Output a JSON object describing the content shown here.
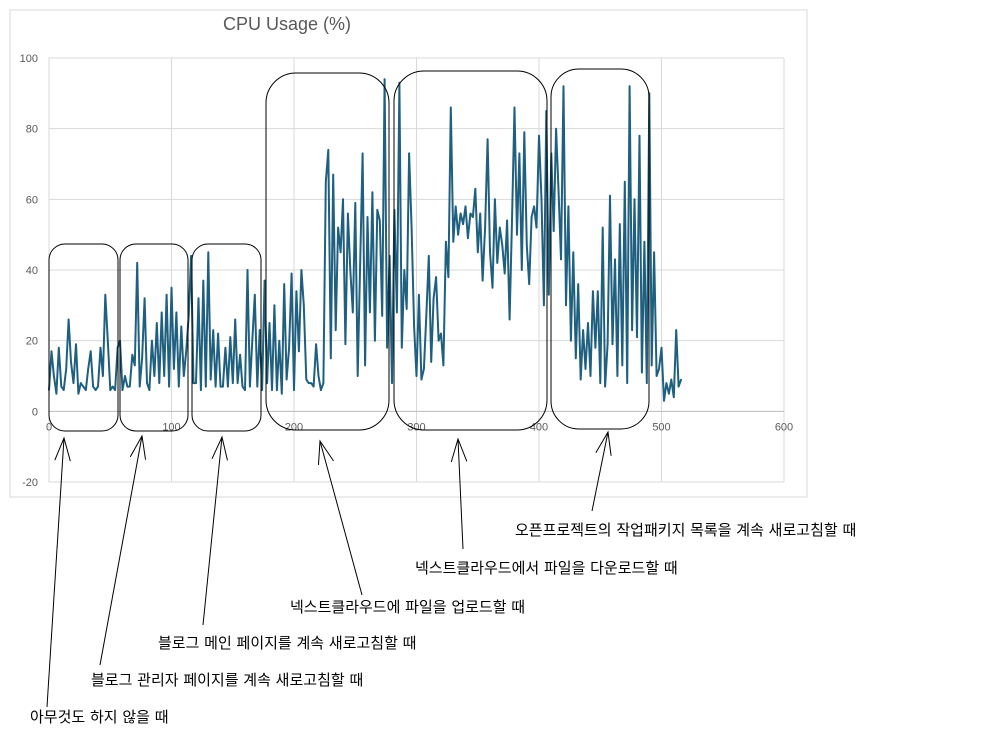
{
  "chart_data": {
    "type": "line",
    "title": "CPU Usage (%)",
    "xlabel": "",
    "ylabel": "",
    "xlim": [
      0,
      600
    ],
    "ylim": [
      -20,
      100
    ],
    "x_ticks": [
      0,
      100,
      200,
      300,
      400,
      500,
      600
    ],
    "y_ticks": [
      -20,
      0,
      20,
      40,
      60,
      80,
      100
    ],
    "grid": true,
    "line_color": "#1f5f7f",
    "series": [
      {
        "name": "",
        "points": [
          [
            0,
            6
          ],
          [
            2,
            17
          ],
          [
            4,
            10
          ],
          [
            6,
            5
          ],
          [
            8,
            18
          ],
          [
            10,
            7
          ],
          [
            12,
            6
          ],
          [
            14,
            12
          ],
          [
            16,
            26
          ],
          [
            18,
            14
          ],
          [
            20,
            8
          ],
          [
            22,
            19
          ],
          [
            24,
            5
          ],
          [
            26,
            8
          ],
          [
            28,
            7
          ],
          [
            30,
            6
          ],
          [
            32,
            12
          ],
          [
            34,
            17
          ],
          [
            36,
            7
          ],
          [
            38,
            6
          ],
          [
            40,
            7
          ],
          [
            42,
            18
          ],
          [
            44,
            10
          ],
          [
            46,
            33
          ],
          [
            48,
            20
          ],
          [
            50,
            6
          ],
          [
            52,
            7
          ],
          [
            54,
            6
          ],
          [
            56,
            18
          ],
          [
            58,
            20
          ],
          [
            60,
            6
          ],
          [
            62,
            10
          ],
          [
            64,
            7
          ],
          [
            66,
            7
          ],
          [
            68,
            16
          ],
          [
            70,
            13
          ],
          [
            72,
            42
          ],
          [
            74,
            7
          ],
          [
            76,
            15
          ],
          [
            78,
            32
          ],
          [
            80,
            8
          ],
          [
            82,
            6
          ],
          [
            84,
            20
          ],
          [
            86,
            10
          ],
          [
            88,
            25
          ],
          [
            90,
            8
          ],
          [
            92,
            28
          ],
          [
            94,
            10
          ],
          [
            96,
            33
          ],
          [
            98,
            7
          ],
          [
            100,
            35
          ],
          [
            102,
            12
          ],
          [
            104,
            28
          ],
          [
            106,
            7
          ],
          [
            108,
            24
          ],
          [
            110,
            10
          ],
          [
            112,
            17
          ],
          [
            114,
            27
          ],
          [
            116,
            44
          ],
          [
            118,
            8
          ],
          [
            120,
            8
          ],
          [
            122,
            32
          ],
          [
            124,
            6
          ],
          [
            126,
            37
          ],
          [
            128,
            7
          ],
          [
            130,
            45
          ],
          [
            132,
            9
          ],
          [
            134,
            23
          ],
          [
            136,
            7
          ],
          [
            138,
            22
          ],
          [
            140,
            7
          ],
          [
            142,
            7
          ],
          [
            144,
            18
          ],
          [
            146,
            7
          ],
          [
            148,
            21
          ],
          [
            150,
            8
          ],
          [
            152,
            26
          ],
          [
            154,
            8
          ],
          [
            156,
            16
          ],
          [
            158,
            7
          ],
          [
            160,
            6
          ],
          [
            162,
            40
          ],
          [
            164,
            7
          ],
          [
            166,
            20
          ],
          [
            168,
            33
          ],
          [
            170,
            7
          ],
          [
            172,
            23
          ],
          [
            174,
            6
          ],
          [
            176,
            37
          ],
          [
            178,
            8
          ],
          [
            180,
            25
          ],
          [
            182,
            6
          ],
          [
            184,
            30
          ],
          [
            186,
            6
          ],
          [
            188,
            20
          ],
          [
            190,
            5
          ],
          [
            192,
            36
          ],
          [
            194,
            9
          ],
          [
            196,
            18
          ],
          [
            198,
            39
          ],
          [
            200,
            6
          ],
          [
            202,
            34
          ],
          [
            204,
            17
          ],
          [
            206,
            40
          ],
          [
            208,
            30
          ],
          [
            210,
            9
          ],
          [
            212,
            8
          ],
          [
            214,
            8
          ],
          [
            216,
            7
          ],
          [
            218,
            19
          ],
          [
            220,
            10
          ],
          [
            222,
            6
          ],
          [
            224,
            8
          ],
          [
            226,
            65
          ],
          [
            228,
            74
          ],
          [
            230,
            15
          ],
          [
            232,
            67
          ],
          [
            234,
            23
          ],
          [
            236,
            52
          ],
          [
            238,
            45
          ],
          [
            240,
            60
          ],
          [
            242,
            19
          ],
          [
            244,
            56
          ],
          [
            246,
            40
          ],
          [
            248,
            28
          ],
          [
            250,
            59
          ],
          [
            252,
            10
          ],
          [
            254,
            41
          ],
          [
            256,
            73
          ],
          [
            258,
            13
          ],
          [
            260,
            55
          ],
          [
            262,
            28
          ],
          [
            264,
            62
          ],
          [
            266,
            20
          ],
          [
            268,
            57
          ],
          [
            270,
            54
          ],
          [
            272,
            27
          ],
          [
            274,
            94
          ],
          [
            276,
            18
          ],
          [
            278,
            44
          ],
          [
            280,
            8
          ],
          [
            282,
            57
          ],
          [
            284,
            28
          ],
          [
            286,
            93
          ],
          [
            288,
            18
          ],
          [
            290,
            40
          ],
          [
            292,
            29
          ],
          [
            294,
            73
          ],
          [
            296,
            52
          ],
          [
            298,
            24
          ],
          [
            300,
            10
          ],
          [
            302,
            33
          ],
          [
            304,
            9
          ],
          [
            306,
            12
          ],
          [
            308,
            27
          ],
          [
            310,
            44
          ],
          [
            312,
            14
          ],
          [
            314,
            32
          ],
          [
            316,
            38
          ],
          [
            318,
            20
          ],
          [
            320,
            22
          ],
          [
            322,
            13
          ],
          [
            324,
            48
          ],
          [
            326,
            38
          ],
          [
            328,
            86
          ],
          [
            330,
            48
          ],
          [
            332,
            58
          ],
          [
            334,
            50
          ],
          [
            336,
            56
          ],
          [
            338,
            53
          ],
          [
            340,
            58
          ],
          [
            342,
            49
          ],
          [
            344,
            56
          ],
          [
            346,
            55
          ],
          [
            348,
            63
          ],
          [
            350,
            45
          ],
          [
            352,
            56
          ],
          [
            354,
            37
          ],
          [
            356,
            52
          ],
          [
            358,
            77
          ],
          [
            360,
            45
          ],
          [
            362,
            35
          ],
          [
            364,
            60
          ],
          [
            366,
            42
          ],
          [
            368,
            52
          ],
          [
            370,
            47
          ],
          [
            372,
            39
          ],
          [
            374,
            54
          ],
          [
            376,
            26
          ],
          [
            378,
            54
          ],
          [
            380,
            86
          ],
          [
            382,
            50
          ],
          [
            384,
            73
          ],
          [
            386,
            40
          ],
          [
            388,
            79
          ],
          [
            390,
            47
          ],
          [
            392,
            36
          ],
          [
            394,
            55
          ],
          [
            396,
            58
          ],
          [
            398,
            52
          ],
          [
            400,
            78
          ],
          [
            402,
            60
          ],
          [
            404,
            30
          ],
          [
            406,
            85
          ],
          [
            408,
            33
          ],
          [
            410,
            73
          ],
          [
            412,
            51
          ],
          [
            414,
            80
          ],
          [
            416,
            62
          ],
          [
            418,
            43
          ],
          [
            420,
            92
          ],
          [
            422,
            30
          ],
          [
            424,
            58
          ],
          [
            426,
            20
          ],
          [
            428,
            45
          ],
          [
            430,
            15
          ],
          [
            432,
            36
          ],
          [
            434,
            9
          ],
          [
            436,
            23
          ],
          [
            438,
            12
          ],
          [
            440,
            25
          ],
          [
            442,
            10
          ],
          [
            444,
            34
          ],
          [
            446,
            18
          ],
          [
            448,
            34
          ],
          [
            450,
            8
          ],
          [
            452,
            52
          ],
          [
            454,
            7
          ],
          [
            456,
            19
          ],
          [
            458,
            61
          ],
          [
            460,
            19
          ],
          [
            462,
            43
          ],
          [
            464,
            10
          ],
          [
            466,
            53
          ],
          [
            468,
            13
          ],
          [
            470,
            65
          ],
          [
            472,
            8
          ],
          [
            474,
            92
          ],
          [
            476,
            23
          ],
          [
            478,
            60
          ],
          [
            480,
            21
          ],
          [
            482,
            78
          ],
          [
            484,
            11
          ],
          [
            486,
            48
          ],
          [
            488,
            8
          ],
          [
            490,
            90
          ],
          [
            492,
            13
          ],
          [
            494,
            45
          ],
          [
            496,
            10
          ],
          [
            498,
            12
          ],
          [
            500,
            18
          ],
          [
            502,
            3
          ],
          [
            504,
            8
          ],
          [
            506,
            5
          ],
          [
            508,
            9
          ],
          [
            510,
            4
          ],
          [
            512,
            23
          ],
          [
            514,
            7
          ],
          [
            516,
            9
          ]
        ]
      }
    ],
    "annotations": [
      "아무것도 하지 않을 때",
      "블로그 관리자 페이지를 계속 새로고침할 때",
      "블로그 메인 페이지를 계속 새로고침할 때",
      "넥스트클라우드에 파일을 업로드할 때",
      "넥스트클라우드에서 파일을 다운로드할 때",
      "오픈프로젝트의 작업패키지 목록을 계속 새로고침할 때"
    ]
  }
}
